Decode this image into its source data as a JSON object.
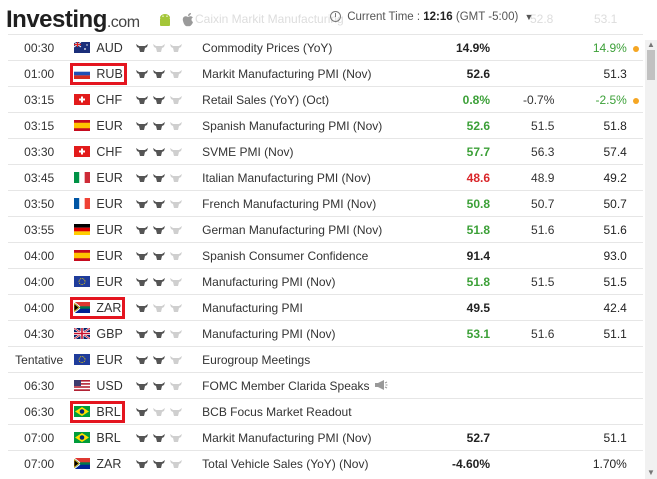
{
  "header": {
    "logo_main": "Investing",
    "logo_suffix": ".com",
    "ghost_text": "Caixin Markit Manufacturing",
    "time_label": "Current Time :",
    "time_value": "12:16",
    "timezone": "(GMT -5:00)",
    "ghost_value_1": "52.8",
    "ghost_value_2": "53.1"
  },
  "rows": [
    {
      "time": "00:30",
      "flag": "au",
      "currency": "AUD",
      "bulls": 1,
      "event": "Commodity Prices (YoY)",
      "actual": "14.9%",
      "actual_color": "black",
      "forecast": "",
      "previous": "14.9%",
      "previous_color": "green",
      "dot": true,
      "highlight": false
    },
    {
      "time": "01:00",
      "flag": "ru",
      "currency": "RUB",
      "bulls": 2,
      "event": "Markit Manufacturing PMI (Nov)",
      "actual": "52.6",
      "actual_color": "black",
      "forecast": "",
      "previous": "51.3",
      "previous_color": "black",
      "dot": false,
      "highlight": true
    },
    {
      "time": "03:15",
      "flag": "ch",
      "currency": "CHF",
      "bulls": 2,
      "event": "Retail Sales (YoY) (Oct)",
      "actual": "0.8%",
      "actual_color": "green",
      "forecast": "-0.7%",
      "previous": "-2.5%",
      "previous_color": "green",
      "dot": true,
      "highlight": false
    },
    {
      "time": "03:15",
      "flag": "es",
      "currency": "EUR",
      "bulls": 2,
      "event": "Spanish Manufacturing PMI (Nov)",
      "actual": "52.6",
      "actual_color": "green",
      "forecast": "51.5",
      "previous": "51.8",
      "previous_color": "black",
      "dot": false,
      "highlight": false
    },
    {
      "time": "03:30",
      "flag": "ch",
      "currency": "CHF",
      "bulls": 2,
      "event": "SVME PMI (Nov)",
      "actual": "57.7",
      "actual_color": "green",
      "forecast": "56.3",
      "previous": "57.4",
      "previous_color": "black",
      "dot": false,
      "highlight": false
    },
    {
      "time": "03:45",
      "flag": "it",
      "currency": "EUR",
      "bulls": 2,
      "event": "Italian Manufacturing PMI (Nov)",
      "actual": "48.6",
      "actual_color": "red",
      "forecast": "48.9",
      "previous": "49.2",
      "previous_color": "black",
      "dot": false,
      "highlight": false
    },
    {
      "time": "03:50",
      "flag": "fr",
      "currency": "EUR",
      "bulls": 2,
      "event": "French Manufacturing PMI (Nov)",
      "actual": "50.8",
      "actual_color": "green",
      "forecast": "50.7",
      "previous": "50.7",
      "previous_color": "black",
      "dot": false,
      "highlight": false
    },
    {
      "time": "03:55",
      "flag": "de",
      "currency": "EUR",
      "bulls": 2,
      "event": "German Manufacturing PMI (Nov)",
      "actual": "51.8",
      "actual_color": "green",
      "forecast": "51.6",
      "previous": "51.6",
      "previous_color": "black",
      "dot": false,
      "highlight": false
    },
    {
      "time": "04:00",
      "flag": "es",
      "currency": "EUR",
      "bulls": 2,
      "event": "Spanish Consumer Confidence",
      "actual": "91.4",
      "actual_color": "black",
      "forecast": "",
      "previous": "93.0",
      "previous_color": "black",
      "dot": false,
      "highlight": false
    },
    {
      "time": "04:00",
      "flag": "eu",
      "currency": "EUR",
      "bulls": 2,
      "event": "Manufacturing PMI (Nov)",
      "actual": "51.8",
      "actual_color": "green",
      "forecast": "51.5",
      "previous": "51.5",
      "previous_color": "black",
      "dot": false,
      "highlight": false
    },
    {
      "time": "04:00",
      "flag": "za",
      "currency": "ZAR",
      "bulls": 1,
      "event": "Manufacturing PMI",
      "actual": "49.5",
      "actual_color": "black",
      "forecast": "",
      "previous": "42.4",
      "previous_color": "black",
      "dot": false,
      "highlight": true
    },
    {
      "time": "04:30",
      "flag": "gb",
      "currency": "GBP",
      "bulls": 2,
      "event": "Manufacturing PMI (Nov)",
      "actual": "53.1",
      "actual_color": "green",
      "forecast": "51.6",
      "previous": "51.1",
      "previous_color": "black",
      "dot": false,
      "highlight": false
    },
    {
      "time": "Tentative",
      "flag": "eu",
      "currency": "EUR",
      "bulls": 2,
      "event": "Eurogroup Meetings",
      "actual": "",
      "actual_color": "black",
      "forecast": "",
      "previous": "",
      "previous_color": "black",
      "dot": false,
      "highlight": false
    },
    {
      "time": "06:30",
      "flag": "us",
      "currency": "USD",
      "bulls": 2,
      "event": "FOMC Member Clarida Speaks",
      "actual": "",
      "actual_color": "black",
      "forecast": "",
      "previous": "",
      "previous_color": "black",
      "dot": false,
      "highlight": false,
      "speaker": true
    },
    {
      "time": "06:30",
      "flag": "br",
      "currency": "BRL",
      "bulls": 1,
      "event": "BCB Focus Market Readout",
      "actual": "",
      "actual_color": "black",
      "forecast": "",
      "previous": "",
      "previous_color": "black",
      "dot": false,
      "highlight": true
    },
    {
      "time": "07:00",
      "flag": "br",
      "currency": "BRL",
      "bulls": 2,
      "event": "Markit Manufacturing PMI (Nov)",
      "actual": "52.7",
      "actual_color": "black",
      "forecast": "",
      "previous": "51.1",
      "previous_color": "black",
      "dot": false,
      "highlight": false
    },
    {
      "time": "07:00",
      "flag": "za",
      "currency": "ZAR",
      "bulls": 2,
      "event": "Total Vehicle Sales (YoY) (Nov)",
      "actual": "-4.60%",
      "actual_color": "black",
      "forecast": "",
      "previous": "1.70%",
      "previous_color": "black",
      "dot": false,
      "highlight": false
    }
  ],
  "colors": {
    "highlight": "#e4151f",
    "green": "#3ca038",
    "red": "#d9262a",
    "dot": "#f5a623"
  }
}
